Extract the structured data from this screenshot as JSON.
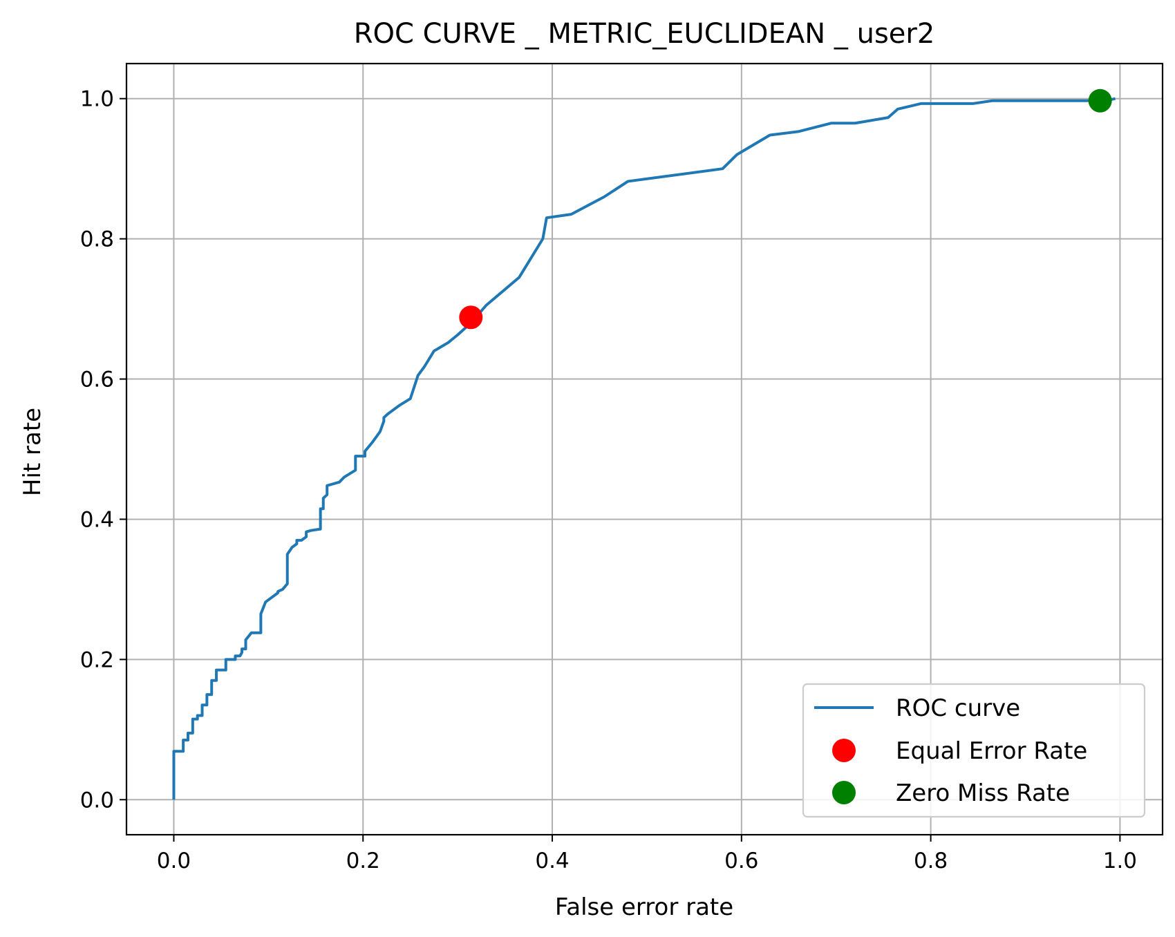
{
  "chart_data": {
    "type": "line",
    "title": "ROC CURVE _ METRIC_EUCLIDEAN _ user2",
    "xlabel": "False error rate",
    "ylabel": "Hit rate",
    "xlim": [
      -0.05,
      1.045
    ],
    "ylim": [
      -0.05,
      1.05
    ],
    "xticks": [
      0.0,
      0.2,
      0.4,
      0.6,
      0.8,
      1.0
    ],
    "xtick_labels": [
      "0.0",
      "0.2",
      "0.4",
      "0.6",
      "0.8",
      "1.0"
    ],
    "yticks": [
      0.0,
      0.2,
      0.4,
      0.6,
      0.8,
      1.0
    ],
    "ytick_labels": [
      "0.0",
      "0.2",
      "0.4",
      "0.6",
      "0.8",
      "1.0"
    ],
    "grid": true,
    "legend_position": "lower right",
    "series": [
      {
        "name": "ROC curve",
        "kind": "line",
        "color": "#1f77b4",
        "x": [
          0.0,
          0.0,
          0.01,
          0.01,
          0.015,
          0.015,
          0.02,
          0.02,
          0.025,
          0.025,
          0.03,
          0.03,
          0.035,
          0.035,
          0.04,
          0.04,
          0.045,
          0.045,
          0.055,
          0.055,
          0.065,
          0.065,
          0.07,
          0.072,
          0.072,
          0.076,
          0.076,
          0.082,
          0.092,
          0.092,
          0.097,
          0.11,
          0.11,
          0.115,
          0.12,
          0.12,
          0.125,
          0.13,
          0.13,
          0.135,
          0.14,
          0.14,
          0.145,
          0.155,
          0.155,
          0.158,
          0.158,
          0.162,
          0.162,
          0.175,
          0.18,
          0.192,
          0.192,
          0.202,
          0.202,
          0.21,
          0.218,
          0.222,
          0.222,
          0.226,
          0.238,
          0.25,
          0.258,
          0.265,
          0.275,
          0.29,
          0.3,
          0.314,
          0.33,
          0.365,
          0.39,
          0.394,
          0.42,
          0.455,
          0.48,
          0.58,
          0.595,
          0.63,
          0.66,
          0.695,
          0.72,
          0.755,
          0.765,
          0.79,
          0.845,
          0.865,
          0.985,
          0.995
        ],
        "y": [
          0.0,
          0.069,
          0.069,
          0.085,
          0.085,
          0.095,
          0.095,
          0.115,
          0.115,
          0.12,
          0.12,
          0.135,
          0.135,
          0.15,
          0.15,
          0.17,
          0.17,
          0.185,
          0.185,
          0.2,
          0.2,
          0.205,
          0.205,
          0.21,
          0.215,
          0.215,
          0.228,
          0.238,
          0.238,
          0.265,
          0.282,
          0.295,
          0.297,
          0.3,
          0.308,
          0.35,
          0.36,
          0.365,
          0.37,
          0.37,
          0.375,
          0.382,
          0.384,
          0.386,
          0.415,
          0.415,
          0.43,
          0.435,
          0.448,
          0.453,
          0.46,
          0.47,
          0.49,
          0.49,
          0.497,
          0.51,
          0.525,
          0.54,
          0.545,
          0.55,
          0.562,
          0.572,
          0.605,
          0.618,
          0.64,
          0.652,
          0.663,
          0.68,
          0.705,
          0.745,
          0.8,
          0.83,
          0.835,
          0.86,
          0.882,
          0.9,
          0.92,
          0.948,
          0.953,
          0.965,
          0.965,
          0.973,
          0.985,
          0.993,
          0.993,
          0.997,
          0.997,
          1.0
        ]
      },
      {
        "name": "Equal Error Rate",
        "kind": "scatter",
        "color": "#ff0000",
        "x": [
          0.314
        ],
        "y": [
          0.688
        ]
      },
      {
        "name": "Zero Miss Rate",
        "kind": "scatter",
        "color": "#008000",
        "x": [
          0.979
        ],
        "y": [
          0.997
        ]
      }
    ]
  }
}
